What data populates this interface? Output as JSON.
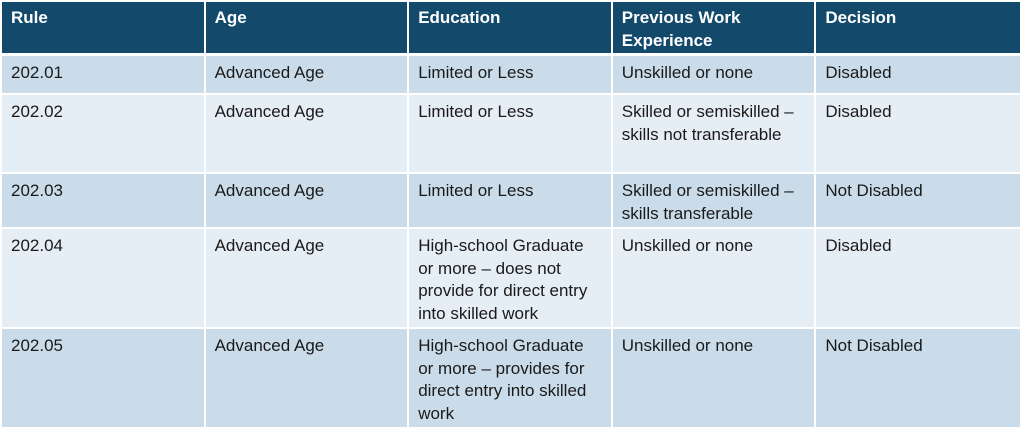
{
  "table": {
    "colors": {
      "header_bg": "#134a6c",
      "header_text": "#ffffff",
      "row_odd_bg": "#cadbe9",
      "row_even_bg": "#e5edf5",
      "cell_text": "#1a1a1a"
    },
    "headers": [
      "Rule",
      "Age",
      "Education",
      "Previous Work Experience",
      "Decision"
    ],
    "rows": [
      {
        "rule": "202.01",
        "age": "Advanced Age",
        "education": "Limited or Less",
        "previous_work_experience": "Unskilled or none",
        "decision": "Disabled"
      },
      {
        "rule": "202.02",
        "age": "Advanced Age",
        "education": "Limited or Less",
        "previous_work_experience": "Skilled or semiskilled – skills not transferable",
        "decision": "Disabled"
      },
      {
        "rule": "202.03",
        "age": "Advanced Age",
        "education": "Limited or Less",
        "previous_work_experience": "Skilled or semiskilled – skills transferable",
        "decision": "Not Disabled"
      },
      {
        "rule": "202.04",
        "age": "Advanced Age",
        "education": "High-school Graduate or more – does not provide for direct entry into skilled work",
        "previous_work_experience": "Unskilled or none",
        "decision": "Disabled"
      },
      {
        "rule": "202.05",
        "age": "Advanced Age",
        "education": "High-school Graduate or more – provides for direct entry into skilled work",
        "previous_work_experience": "Unskilled or none",
        "decision": "Not Disabled"
      }
    ]
  }
}
